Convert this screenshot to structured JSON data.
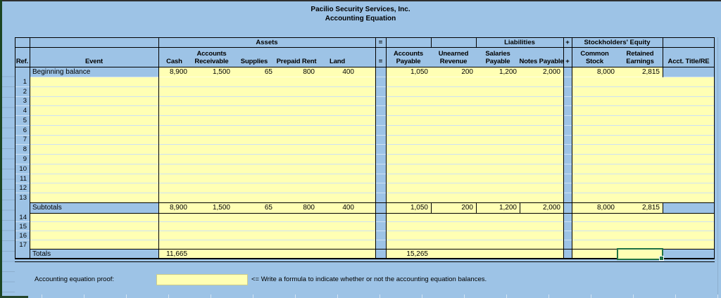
{
  "title": {
    "line1": "Pacilio Security Services, Inc.",
    "line2": "Accounting Equation"
  },
  "symbols": {
    "equals": "=",
    "plus": "+"
  },
  "colors": {
    "background": "#9dc3e6",
    "cell_fill_yellow": "#ffffb4",
    "selection_green": "#217346",
    "left_bar_green": "#1b4422",
    "grid_border": "#000000"
  },
  "sections": {
    "assets": "Assets",
    "liabilities": "Liabilities",
    "equity": "Stockholders' Equity"
  },
  "columns": {
    "ref": "Ref.",
    "event": "Event",
    "cash": "Cash",
    "accounts_receivable": [
      "Accounts",
      "Receivable"
    ],
    "supplies": "Supplies",
    "prepaid_rent": "Prepaid Rent",
    "land": "Land",
    "accounts_payable": [
      "Accounts",
      "Payable"
    ],
    "unearned_revenue": [
      "Unearned",
      "Revenue"
    ],
    "salaries_payable": [
      "Salaries",
      "Payable"
    ],
    "notes_payable": "Notes Payable",
    "common_stock": [
      "Common",
      "Stock"
    ],
    "retained_earnings": [
      "Retained",
      "Earnings"
    ],
    "acct_title": "Acct. Title/RE"
  },
  "rows": {
    "beginning": {
      "event": "Beginning balance",
      "cash": "8,900",
      "accounts_receivable": "1,500",
      "supplies": "65",
      "prepaid_rent": "800",
      "land": "400",
      "accounts_payable": "1,050",
      "unearned_revenue": "200",
      "salaries_payable": "1,200",
      "notes_payable": "2,000",
      "common_stock": "8,000",
      "retained_earnings": "2,815"
    },
    "blank_refs_top": [
      "1",
      "2",
      "3",
      "4",
      "5",
      "6",
      "7",
      "8",
      "9",
      "10",
      "11",
      "12",
      "13"
    ],
    "subtotals": {
      "event": "Subtotals",
      "cash": "8,900",
      "accounts_receivable": "1,500",
      "supplies": "65",
      "prepaid_rent": "800",
      "land": "400",
      "accounts_payable": "1,050",
      "unearned_revenue": "200",
      "salaries_payable": "1,200",
      "notes_payable": "2,000",
      "common_stock": "8,000",
      "retained_earnings": "2,815"
    },
    "blank_refs_bottom": [
      "14",
      "15",
      "16",
      "17"
    ],
    "totals": {
      "event": "Totals",
      "assets_total": "11,665",
      "liabilities_total": "15,265"
    }
  },
  "proof": {
    "label": "Accounting equation proof:",
    "hint": "<= Write a formula to indicate whether or not the accounting equation balances."
  }
}
